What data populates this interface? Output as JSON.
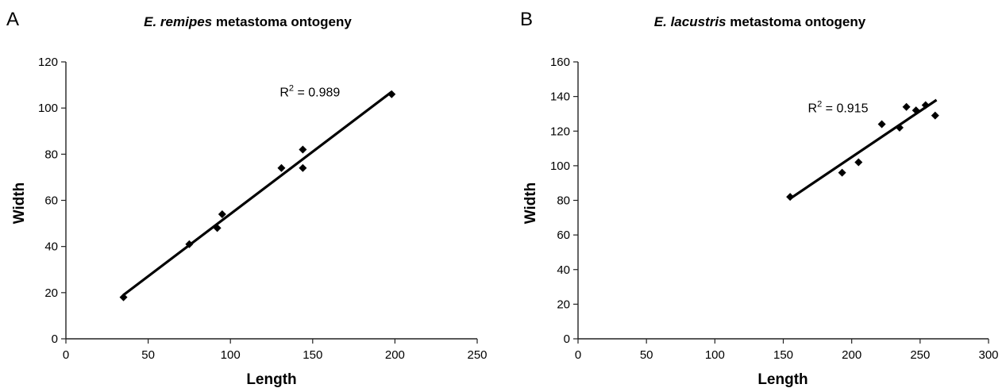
{
  "panels": [
    {
      "letter": "A",
      "title": {
        "species": "E. remipes",
        "rest": " metastoma ontogeny"
      },
      "chart_data": {
        "type": "scatter",
        "xlabel": "Length",
        "ylabel": "Width",
        "xlim": [
          0,
          250
        ],
        "ylim": [
          0,
          120
        ],
        "xticks": [
          0,
          50,
          100,
          150,
          200,
          250
        ],
        "yticks": [
          0,
          20,
          40,
          60,
          80,
          100,
          120
        ],
        "grid": false,
        "points": [
          {
            "x": 35,
            "y": 18
          },
          {
            "x": 75,
            "y": 41
          },
          {
            "x": 92,
            "y": 48
          },
          {
            "x": 95,
            "y": 54
          },
          {
            "x": 131,
            "y": 74
          },
          {
            "x": 144,
            "y": 82
          },
          {
            "x": 144,
            "y": 74
          },
          {
            "x": 198,
            "y": 106
          }
        ],
        "trendline": {
          "x": [
            35,
            198
          ],
          "y": [
            19,
            107
          ]
        },
        "annotation": {
          "text": "R",
          "sup": "2",
          "rest": " = 0.989",
          "x": 130,
          "y": 105
        }
      }
    },
    {
      "letter": "B",
      "title": {
        "species": "E. lacustris",
        "rest": " metastoma ontogeny"
      },
      "chart_data": {
        "type": "scatter",
        "xlabel": "Length",
        "ylabel": "Width",
        "xlim": [
          0,
          300
        ],
        "ylim": [
          0,
          160
        ],
        "xticks": [
          0,
          50,
          100,
          150,
          200,
          250,
          300
        ],
        "yticks": [
          0,
          20,
          40,
          60,
          80,
          100,
          120,
          140,
          160
        ],
        "grid": false,
        "points": [
          {
            "x": 155,
            "y": 82
          },
          {
            "x": 193,
            "y": 96
          },
          {
            "x": 205,
            "y": 102
          },
          {
            "x": 222,
            "y": 124
          },
          {
            "x": 235,
            "y": 122
          },
          {
            "x": 240,
            "y": 134
          },
          {
            "x": 247,
            "y": 132
          },
          {
            "x": 254,
            "y": 135
          },
          {
            "x": 261,
            "y": 129
          }
        ],
        "trendline": {
          "x": [
            155,
            262
          ],
          "y": [
            81,
            138
          ]
        },
        "annotation": {
          "text": "R",
          "sup": "2",
          "rest": " = 0.915",
          "x": 168,
          "y": 131
        }
      }
    }
  ]
}
